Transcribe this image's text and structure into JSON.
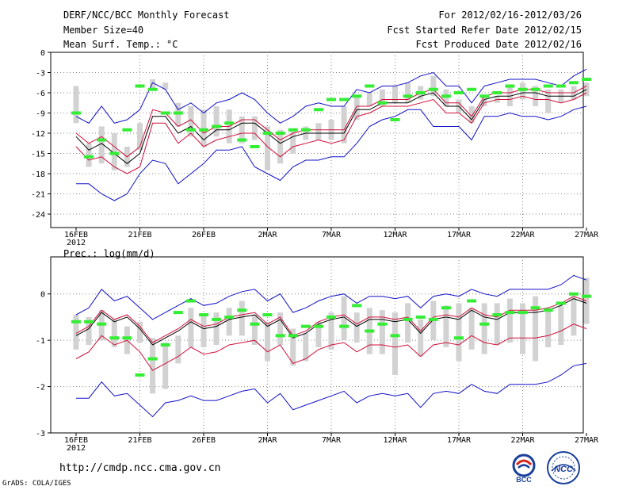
{
  "header": {
    "left": [
      "DERF/NCC/BCC Monthly Forecast",
      "Member Size=40",
      "Mean Surf. Temp.: °C"
    ],
    "right": [
      "For 2012/02/16-2012/03/26",
      "Fcst Started Refer Date 2012/02/15",
      "Fcst Produced Date 2012/02/16"
    ]
  },
  "footer": {
    "url": "http://cmdp.ncc.cma.gov.cn",
    "credit": "GrADS: COLA/IGES",
    "logo_left_text": "BCC",
    "logo_right_text": "NCC"
  },
  "colors": {
    "median": "#000000",
    "inner": "#d0103a",
    "outer": "#1010c8",
    "box": "#d2d2d2",
    "obs": "#33ee33",
    "grid": "#888888"
  },
  "x_ticks": {
    "labels": [
      "16FEB",
      "21FEB",
      "26FEB",
      "2MAR",
      "7MAR",
      "12MAR",
      "17MAR",
      "22MAR",
      "27MAR"
    ],
    "year": "2012"
  },
  "chart_data": [
    {
      "type": "line",
      "title": "Mean Surf. Temp.: °C",
      "days": 41,
      "ylim": [
        -26,
        0
      ],
      "yticks": [
        0,
        -3,
        -6,
        -9,
        -12,
        -15,
        -18,
        -21,
        -24
      ],
      "series": [
        {
          "name": "median",
          "values": [
            -12.5,
            -14.5,
            -13.5,
            -15,
            -16.5,
            -15,
            -9.5,
            -9.5,
            -12,
            -11,
            -13,
            -11.5,
            -11.5,
            -10.5,
            -10.5,
            -12,
            -13.5,
            -12.5,
            -12,
            -12,
            -12,
            -12,
            -8.5,
            -8.5,
            -7.5,
            -7.5,
            -7.5,
            -6.5,
            -6,
            -8,
            -8,
            -10,
            -7,
            -6.5,
            -6.5,
            -6,
            -6,
            -6.5,
            -6.5,
            -6.5,
            -5.5
          ]
        },
        {
          "name": "inner_upper",
          "values": [
            -12,
            -13.5,
            -12.5,
            -14,
            -15.5,
            -14,
            -8.5,
            -9,
            -11,
            -10,
            -12,
            -11,
            -11,
            -10,
            -10,
            -11.5,
            -13,
            -12,
            -11.5,
            -11.5,
            -11.5,
            -11.5,
            -8,
            -8,
            -7,
            -7,
            -7,
            -6,
            -5.5,
            -7.5,
            -7.5,
            -9.5,
            -6.5,
            -6,
            -6,
            -5.5,
            -5.5,
            -6,
            -6,
            -6,
            -5
          ]
        },
        {
          "name": "inner_lower",
          "values": [
            -14,
            -16,
            -15.5,
            -17,
            -18,
            -17,
            -10.5,
            -10.5,
            -13.5,
            -12,
            -14,
            -13,
            -12.5,
            -12,
            -12,
            -14,
            -15.5,
            -14,
            -13.5,
            -13,
            -13.5,
            -13,
            -9.5,
            -9,
            -8,
            -8,
            -8,
            -7.5,
            -7,
            -9,
            -9,
            -10.5,
            -7.5,
            -7,
            -7,
            -6.5,
            -7,
            -7,
            -7.5,
            -7,
            -6
          ]
        },
        {
          "name": "outer_upper",
          "values": [
            -9.5,
            -10.5,
            -8,
            -10.5,
            -10,
            -8.5,
            -4.5,
            -5.5,
            -8.5,
            -7.5,
            -9,
            -7.5,
            -7,
            -6,
            -7,
            -9,
            -10.5,
            -9.5,
            -8,
            -7.5,
            -8,
            -8,
            -5.5,
            -6,
            -5,
            -5,
            -4.5,
            -3.5,
            -3,
            -5,
            -5,
            -7.5,
            -5,
            -4.5,
            -4,
            -4,
            -4,
            -4.5,
            -5,
            -3.5,
            -2.5
          ]
        },
        {
          "name": "outer_lower",
          "values": [
            -19.5,
            -19.5,
            -21,
            -22,
            -21,
            -18,
            -16,
            -16.5,
            -19.5,
            -18,
            -16.5,
            -14.5,
            -14.5,
            -14,
            -17,
            -18,
            -19,
            -17,
            -16,
            -16,
            -15.5,
            -15.5,
            -13.5,
            -11,
            -10,
            -9.5,
            -8.5,
            -8.5,
            -11,
            -11,
            -11,
            -13,
            -9.5,
            -9.5,
            -9,
            -9.5,
            -9.5,
            -10,
            -9.5,
            -8.5,
            -8
          ]
        },
        {
          "name": "box_top",
          "values": [
            -5,
            -13.5,
            -11,
            -12,
            -14,
            -10.5,
            -4,
            -4.5,
            -7.5,
            -8,
            -8.5,
            -8,
            -8.5,
            -9.5,
            -9.5,
            -11,
            -11.5,
            -11.5,
            -11,
            -10.5,
            -10,
            -8,
            -6.5,
            -6,
            -5.5,
            -5,
            -4.5,
            -5,
            -3.5,
            -5.5,
            -7,
            -8,
            -6.5,
            -6.5,
            -5,
            -4.5,
            -5,
            -5.5,
            -5.5,
            -5,
            -4.5
          ]
        },
        {
          "name": "box_bottom",
          "values": [
            -10.5,
            -17,
            -16.5,
            -17.5,
            -17,
            -14.5,
            -5.5,
            -5.5,
            -11,
            -12.5,
            -14,
            -12.5,
            -13.5,
            -13.5,
            -13,
            -17.5,
            -16.5,
            -15,
            -13,
            -13,
            -13,
            -13.5,
            -10,
            -8,
            -8,
            -7.5,
            -7.5,
            -7,
            -6.5,
            -8,
            -9,
            -10.5,
            -8,
            -7.5,
            -8,
            -7,
            -8,
            -9,
            -7.5,
            -7,
            -6.5
          ]
        },
        {
          "name": "observed",
          "values": [
            -9,
            -15.5,
            -13,
            -15,
            -11.5,
            -5,
            -5.5,
            -9,
            -9,
            -11.5,
            -11.5,
            -11,
            -10.5,
            -13,
            -14,
            -12,
            -12,
            -11.5,
            -11.5,
            -8.5,
            -7,
            -7,
            -6.5,
            -5,
            -7.5,
            -10,
            -6.5,
            -6,
            -5.5,
            -6.5,
            -6,
            -5.5,
            -6.5,
            -6,
            -5,
            -5.5,
            -5.5,
            -5,
            -5,
            -4.5,
            -4
          ]
        }
      ]
    },
    {
      "type": "line",
      "title": "Prec.: log(mm/d)",
      "days": 41,
      "ylim": [
        -3,
        0.8
      ],
      "yticks": [
        0,
        -1,
        -2,
        -3
      ],
      "series": [
        {
          "name": "median",
          "values": [
            -0.9,
            -0.75,
            -0.4,
            -0.6,
            -0.5,
            -0.75,
            -1.1,
            -0.95,
            -0.8,
            -0.6,
            -0.75,
            -0.7,
            -0.55,
            -0.5,
            -0.45,
            -0.7,
            -0.55,
            -0.95,
            -0.85,
            -0.65,
            -0.55,
            -0.5,
            -0.7,
            -0.55,
            -0.55,
            -0.6,
            -0.55,
            -0.85,
            -0.55,
            -0.5,
            -0.55,
            -0.35,
            -0.5,
            -0.55,
            -0.4,
            -0.4,
            -0.4,
            -0.35,
            -0.25,
            -0.1,
            -0.2
          ]
        },
        {
          "name": "inner_upper",
          "values": [
            -0.85,
            -0.7,
            -0.35,
            -0.55,
            -0.45,
            -0.7,
            -1.05,
            -0.9,
            -0.75,
            -0.55,
            -0.7,
            -0.65,
            -0.5,
            -0.45,
            -0.4,
            -0.65,
            -0.5,
            -0.9,
            -0.8,
            -0.6,
            -0.5,
            -0.45,
            -0.65,
            -0.5,
            -0.5,
            -0.55,
            -0.5,
            -0.8,
            -0.5,
            -0.45,
            -0.5,
            -0.3,
            -0.45,
            -0.5,
            -0.35,
            -0.35,
            -0.35,
            -0.3,
            -0.2,
            -0.05,
            -0.15
          ]
        },
        {
          "name": "inner_lower",
          "values": [
            -1.4,
            -1.25,
            -0.9,
            -1.1,
            -1.0,
            -1.25,
            -1.65,
            -1.5,
            -1.35,
            -1.15,
            -1.3,
            -1.25,
            -1.1,
            -1.05,
            -1.0,
            -1.25,
            -1.1,
            -1.5,
            -1.4,
            -1.2,
            -1.1,
            -1.05,
            -1.25,
            -1.1,
            -1.1,
            -1.15,
            -1.1,
            -1.35,
            -1.1,
            -1.05,
            -1.1,
            -0.9,
            -1.05,
            -1.1,
            -0.95,
            -0.95,
            -0.95,
            -0.9,
            -0.8,
            -0.65,
            -0.75
          ]
        },
        {
          "name": "outer_upper",
          "values": [
            -0.45,
            -0.3,
            0.1,
            -0.15,
            -0.05,
            -0.3,
            -0.55,
            -0.4,
            -0.25,
            -0.1,
            -0.25,
            -0.2,
            -0.05,
            0.05,
            0.1,
            -0.15,
            0.0,
            -0.4,
            -0.3,
            -0.15,
            -0.05,
            0.0,
            -0.2,
            -0.05,
            -0.05,
            -0.1,
            -0.05,
            -0.3,
            -0.05,
            0.0,
            -0.05,
            0.1,
            0.0,
            -0.05,
            0.1,
            0.1,
            0.1,
            0.1,
            0.2,
            0.4,
            0.3
          ]
        },
        {
          "name": "outer_lower",
          "values": [
            -2.25,
            -2.25,
            -1.9,
            -2.2,
            -2.15,
            -2.4,
            -2.65,
            -2.35,
            -2.3,
            -2.2,
            -2.3,
            -2.3,
            -2.2,
            -2.1,
            -2.05,
            -2.35,
            -2.15,
            -2.5,
            -2.4,
            -2.3,
            -2.2,
            -2.1,
            -2.35,
            -2.2,
            -2.15,
            -2.2,
            -2.15,
            -2.45,
            -2.15,
            -2.1,
            -2.15,
            -1.95,
            -2.1,
            -2.15,
            -1.95,
            -1.95,
            -1.95,
            -1.9,
            -1.75,
            -1.55,
            -1.5
          ]
        },
        {
          "name": "box_top",
          "values": [
            -0.45,
            -0.5,
            -0.35,
            -0.55,
            -0.7,
            -0.6,
            -0.95,
            -1.05,
            -0.9,
            -0.3,
            -0.45,
            -0.4,
            -0.3,
            -0.15,
            -0.45,
            -0.6,
            -0.4,
            -0.75,
            -0.85,
            -0.6,
            -0.4,
            -0.05,
            -0.4,
            -0.3,
            -0.35,
            -0.4,
            -0.2,
            -0.55,
            -0.15,
            -0.25,
            -0.2,
            -0.3,
            -0.2,
            -0.2,
            -0.1,
            -0.2,
            -0.05,
            -0.3,
            -0.25,
            -0.05,
            0.35
          ]
        },
        {
          "name": "box_bottom",
          "values": [
            -1.2,
            -1.1,
            -1.0,
            -1.15,
            -1.3,
            -1.05,
            -2.15,
            -2.05,
            -1.5,
            -1.15,
            -1.15,
            -1.1,
            -0.9,
            -0.9,
            -1.1,
            -1.45,
            -1.1,
            -1.55,
            -1.45,
            -1.15,
            -1.2,
            -1.0,
            -1.05,
            -1.3,
            -1.3,
            -1.75,
            -1.05,
            -1.35,
            -1.0,
            -1.15,
            -1.45,
            -1.2,
            -1.3,
            -1.1,
            -1.05,
            -1.3,
            -1.45,
            -1.15,
            -1.1,
            -0.9,
            -0.65
          ]
        },
        {
          "name": "observed",
          "values": [
            -0.6,
            -0.6,
            -0.65,
            -0.95,
            -0.95,
            -1.75,
            -1.4,
            -1.1,
            -0.4,
            -0.15,
            -0.45,
            -0.55,
            -0.5,
            -0.35,
            -0.65,
            -0.45,
            -0.9,
            -0.9,
            -0.7,
            -0.7,
            -0.5,
            -0.7,
            -0.25,
            -0.8,
            -0.65,
            -0.9,
            -0.55,
            -0.5,
            -0.55,
            -0.3,
            -0.95,
            -0.15,
            -0.65,
            -0.45,
            -0.4,
            -0.4,
            -0.3,
            -0.35,
            -0.2,
            0.0,
            -0.05
          ]
        }
      ]
    }
  ]
}
